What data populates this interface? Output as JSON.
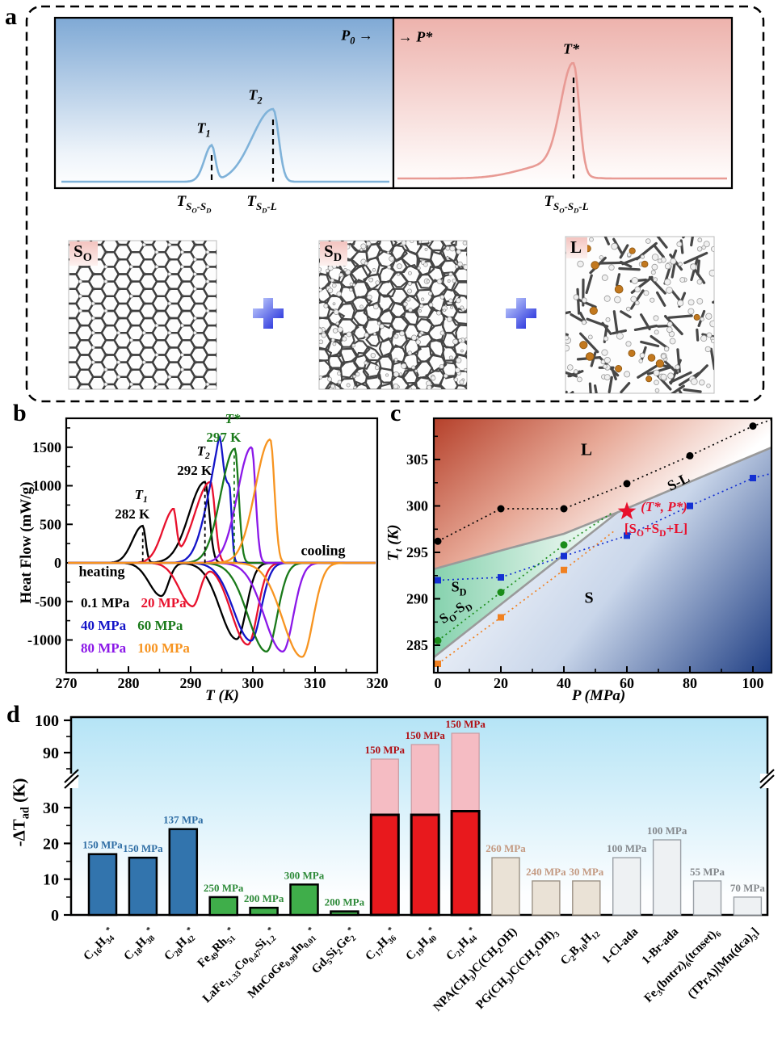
{
  "panels": {
    "a": "a",
    "b": "b",
    "c": "c",
    "d": "d"
  },
  "panel_a": {
    "pressure_left": "P_{0} →",
    "pressure_right": "→ P*",
    "peak1": "T_{1}",
    "peak2": "T_{2}",
    "peak_star": "T*",
    "axis1": "T_{S_{O}-S_{D}}",
    "axis2": "T_{S_{D}-L}",
    "axis3": "T_{S_{O}-S_{D}-L}",
    "structures": [
      {
        "tag": "S_{O}"
      },
      {
        "tag": "S_{D}"
      },
      {
        "tag": "L"
      }
    ],
    "plus_icon": "+"
  },
  "panel_b": {
    "heating": "heating",
    "cooling": "cooling",
    "xlabel": "T (K)",
    "ylabel": "Heat Flow (mW/g)"
  },
  "panel_c": {
    "xlabel": "P (MPa)",
    "ylabel": "T_{t} (K)",
    "region_L": "L",
    "region_SL": "S-L",
    "region_SD": "S_{D}",
    "region_SOSD": "S_{O}-S_{D}",
    "region_S": "S",
    "star_label": "(T*, P*)",
    "star_sub": "[S_{O}+S_{D}+L]"
  },
  "panel_d": {
    "ylabel": "-ΔT_{ad} (K)"
  },
  "chart_data": [
    {
      "id": "b",
      "type": "line",
      "xlabel": "T (K)",
      "ylabel": "Heat Flow (mW/g)",
      "xlim": [
        270,
        320
      ],
      "ylim": [
        -1430,
        1880
      ],
      "xticks": [
        270,
        280,
        290,
        300,
        310,
        320
      ],
      "yticks": [
        -1000,
        -500,
        0,
        500,
        1000,
        1500
      ],
      "annotations": [
        {
          "text": "T_{1}",
          "value": "282 K",
          "x": 282.3,
          "peak": 480,
          "color": "#000000"
        },
        {
          "text": "T_{2}",
          "value": "292 K",
          "x": 292.3,
          "peak": 1050,
          "color": "#000000"
        },
        {
          "text": "T*",
          "value": "297 K",
          "x": 297.0,
          "peak": 1480,
          "color": "#1a7a1a"
        }
      ],
      "series": [
        {
          "name": "0.1 MPa",
          "color": "#000000",
          "heating": [
            [
              282.3,
              480,
              1.1
            ],
            [
              292.3,
              1050,
              1.7
            ]
          ],
          "cooling": [
            [
              285.3,
              -430,
              1.4
            ],
            [
              297.4,
              -990,
              1.9
            ]
          ]
        },
        {
          "name": "20  MPa",
          "color": "#e8112d",
          "heating": [
            [
              287.2,
              640,
              1.2
            ],
            [
              293.2,
              1050,
              1.7
            ]
          ],
          "cooling": [
            [
              290.3,
              -560,
              1.5
            ],
            [
              299.2,
              -1060,
              1.9
            ]
          ]
        },
        {
          "name": "40  MPa",
          "color": "#1414c8",
          "heating": [
            [
              294.5,
              1150,
              1.4
            ],
            [
              296.2,
              1000,
              0.9
            ]
          ],
          "cooling": [
            [
              299.7,
              -1010,
              2.0
            ]
          ]
        },
        {
          "name": "60  MPa",
          "color": "#1a7a1a",
          "heating": [
            [
              297.1,
              1480,
              1.5
            ]
          ],
          "cooling": [
            [
              302.2,
              -1150,
              2.1
            ]
          ]
        },
        {
          "name": "80  MPa",
          "color": "#8b18e8",
          "heating": [
            [
              299.8,
              1500,
              1.5
            ]
          ],
          "cooling": [
            [
              304.8,
              -1150,
              2.1
            ]
          ]
        },
        {
          "name": "100 MPa",
          "color": "#f79420",
          "heating": [
            [
              302.8,
              1600,
              1.6
            ]
          ],
          "cooling": [
            [
              307.9,
              -1220,
              2.2
            ]
          ]
        }
      ]
    },
    {
      "id": "c",
      "type": "scatter",
      "xlabel": "P (MPa)",
      "ylabel": "T_{t} (K)",
      "xlim": [
        -1.3,
        106
      ],
      "ylim": [
        282,
        309.5
      ],
      "xticks": [
        0,
        20,
        40,
        60,
        80,
        100
      ],
      "yticks": [
        285,
        290,
        295,
        300,
        305
      ],
      "series": [
        {
          "name": "L boundary points",
          "marker": "circle",
          "color": "#000000",
          "points": [
            [
              0,
              296.2
            ],
            [
              20,
              299.7
            ],
            [
              40,
              299.7
            ],
            [
              60,
              302.4
            ],
            [
              80,
              305.4
            ],
            [
              100,
              308.6
            ]
          ],
          "extend": [
            106,
            309.3
          ]
        },
        {
          "name": "blue squares",
          "marker": "square",
          "color": "#1430d2",
          "points": [
            [
              0,
              292.0
            ],
            [
              20,
              292.3
            ],
            [
              40,
              294.6
            ],
            [
              60,
              296.8
            ],
            [
              80,
              300.0
            ],
            [
              100,
              303.0
            ]
          ],
          "extend": [
            106,
            303.5
          ]
        },
        {
          "name": "green circles",
          "marker": "circle",
          "color": "#1a8c1a",
          "points": [
            [
              0,
              285.5
            ],
            [
              20,
              290.7
            ],
            [
              40,
              295.8
            ]
          ],
          "extend": [
            55,
            299.2
          ]
        },
        {
          "name": "orange squares",
          "marker": "square",
          "color": "#f08020",
          "points": [
            [
              0,
              283.0
            ],
            [
              20,
              288.0
            ],
            [
              40,
              293.1
            ]
          ],
          "extend": [
            56,
            297.3
          ]
        }
      ],
      "boundaries": [
        {
          "name": "S-L",
          "points": [
            [
              -1.3,
              293.2
            ],
            [
              20,
              295.2
            ],
            [
              40,
              297.0
            ],
            [
              57,
              299.3
            ],
            [
              106,
              306.3
            ]
          ]
        },
        {
          "name": "SO-SD",
          "points": [
            [
              -1.3,
              283.7
            ],
            [
              57,
              299.3
            ]
          ]
        }
      ],
      "star": {
        "x": 60,
        "y": 299.4,
        "color": "#e8112d"
      }
    },
    {
      "id": "d",
      "type": "bar",
      "ylabel": "-ΔT_{ad} (K)",
      "yticks_low": [
        0,
        10,
        20,
        30
      ],
      "yticks_high": [
        90,
        100
      ],
      "axis_break": [
        33,
        88
      ],
      "bars": [
        {
          "label": "C_{16}H_{34}^{*}",
          "value": 17,
          "pressure": "150 MPa",
          "group": "blue"
        },
        {
          "label": "C_{18}H_{38}^{*}",
          "value": 16,
          "pressure": "150 MPa",
          "group": "blue"
        },
        {
          "label": "C_{20}H_{42}^{*}",
          "value": 24,
          "pressure": "137 MPa",
          "group": "blue"
        },
        {
          "label": "Fe_{49}Rh_{51}^{*}",
          "value": 5,
          "pressure": "250 MPa",
          "group": "green"
        },
        {
          "label": "LaFe_{11.33}Co_{0.47}Si_{1.2}^{*}",
          "value": 2,
          "pressure": "200 MPa",
          "group": "green"
        },
        {
          "label": "MnCoGe_{0.99}In_{0.01}^{*}",
          "value": 8.5,
          "pressure": "300 MPa",
          "group": "green"
        },
        {
          "label": "Gd_{5}Si_{2}Ge_{2}^{*}",
          "value": 1,
          "pressure": "200 MPa",
          "group": "green"
        },
        {
          "label": "C_{17}H_{36}^{*}",
          "value": 28,
          "top_value": 88,
          "pressure": "150 MPa",
          "group": "red"
        },
        {
          "label": "C_{19}H_{40}^{*}",
          "value": 28,
          "top_value": 92.5,
          "pressure": "150 MPa",
          "group": "red"
        },
        {
          "label": "C_{21}H_{44}^{*}",
          "value": 29,
          "top_value": 96,
          "pressure": "150 MPa",
          "group": "red"
        },
        {
          "label": "NPA(CH_{3})C(CH_{2}OH)",
          "value": 16,
          "pressure": "260 MPa",
          "group": "tan"
        },
        {
          "label": "PG(CH_{3})C(CH_{2}OH)_{3}",
          "value": 9.5,
          "pressure": "240 MPa",
          "group": "tan"
        },
        {
          "label": "C_{2}B_{10}H_{12}",
          "value": 9.5,
          "pressure": "30 MPa",
          "group": "tan"
        },
        {
          "label": "1-Cl-ada",
          "value": 16,
          "pressure": "100 MPa",
          "group": "gray"
        },
        {
          "label": "1-Br-ada",
          "value": 21,
          "pressure": "100 MPa",
          "group": "gray"
        },
        {
          "label": "Fe_{3}(bntrz)_{6}(tcnset)_{6}",
          "value": 9.5,
          "pressure": "55 MPa",
          "group": "gray"
        },
        {
          "label": "(TPrA)[Mn(dca)_{3}]",
          "value": 5,
          "pressure": "70 MPa",
          "group": "gray"
        }
      ],
      "groups": {
        "blue": {
          "fill": "#3274ad",
          "stroke": "#000000",
          "text": "#2e6da4"
        },
        "green": {
          "fill": "#3fae4a",
          "stroke": "#000000",
          "text": "#2e8b3a"
        },
        "red": {
          "fill": "#e8191d",
          "stroke": "#000000",
          "text": "#b01116",
          "light": "#f5bcc3"
        },
        "tan": {
          "fill": "#eae2d6",
          "stroke": "#9c9285",
          "text": "#c49a82"
        },
        "gray": {
          "fill": "#eef1f3",
          "stroke": "#9aa0a6",
          "text": "#85898d"
        }
      }
    }
  ]
}
